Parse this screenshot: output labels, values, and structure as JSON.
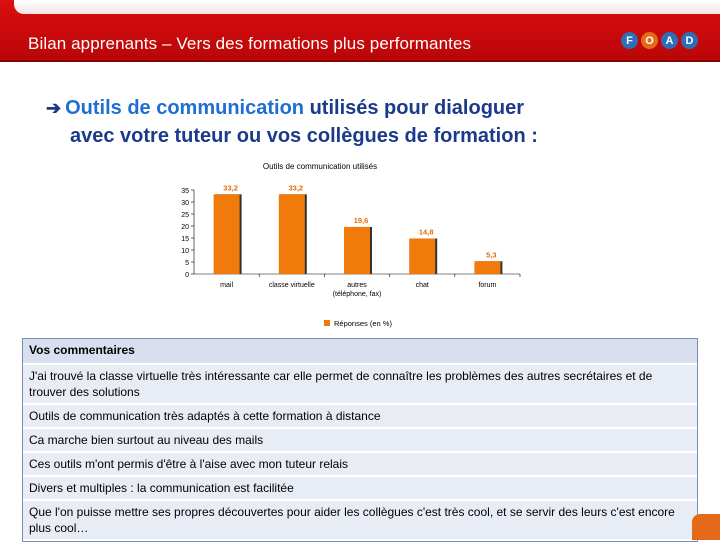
{
  "header": {
    "title": "Bilan apprenants – Vers des formations plus performantes",
    "logo_letters": [
      "F",
      "O",
      "A",
      "D"
    ]
  },
  "heading": {
    "arrow_icon": "right-arrow-icon",
    "accent_text": "Outils de communication",
    "rest_line1": " utilisés pour dialoguer",
    "line2": "avec votre tuteur ou vos collègues de formation :"
  },
  "chart_data": {
    "type": "bar",
    "title": "Outils de communication utilisés",
    "categories": [
      "mail",
      "classe virtuelle",
      "autres\n(téléphone, fax)",
      "chat",
      "forum"
    ],
    "category_lines": [
      [
        "mail"
      ],
      [
        "classe virtuelle"
      ],
      [
        "autres",
        "(téléphone, fax)"
      ],
      [
        "chat"
      ],
      [
        "forum"
      ]
    ],
    "series": [
      {
        "name": "Réponses (en %)",
        "values": [
          33.2,
          33.2,
          19.6,
          14.8,
          5.3
        ]
      }
    ],
    "value_labels": [
      "33,2",
      "33,2",
      "19,6",
      "14,8",
      "5,3"
    ],
    "ylim": [
      0,
      35
    ],
    "yticks": [
      0,
      5,
      10,
      15,
      20,
      25,
      30,
      35
    ],
    "grid": false,
    "legend": "bottom",
    "bar_color": "#f07a0a",
    "label_color": "#e56b0c"
  },
  "comments": {
    "header": "Vos commentaires",
    "rows": [
      "J'ai trouvé la classe virtuelle très intéressante car elle permet de connaître les problèmes des autres secrétaires et de trouver des solutions",
      "Outils de communication très adaptés à cette formation à distance",
      "Ca marche bien surtout au niveau des mails",
      "Ces outils m'ont permis d'être à l'aise avec mon tuteur relais",
      "Divers et multiples : la communication est facilitée",
      "Que l'on puisse mettre ses propres découvertes pour aider les collègues c'est très cool, et se servir des leurs c'est encore plus cool…"
    ]
  },
  "colors": {
    "title_bar": "#dc0e10",
    "heading": "#1b3a8a",
    "heading_accent": "#1f6ed4",
    "comments_bg": "#e8ecf5",
    "comments_header_bg": "#d9dfee"
  }
}
